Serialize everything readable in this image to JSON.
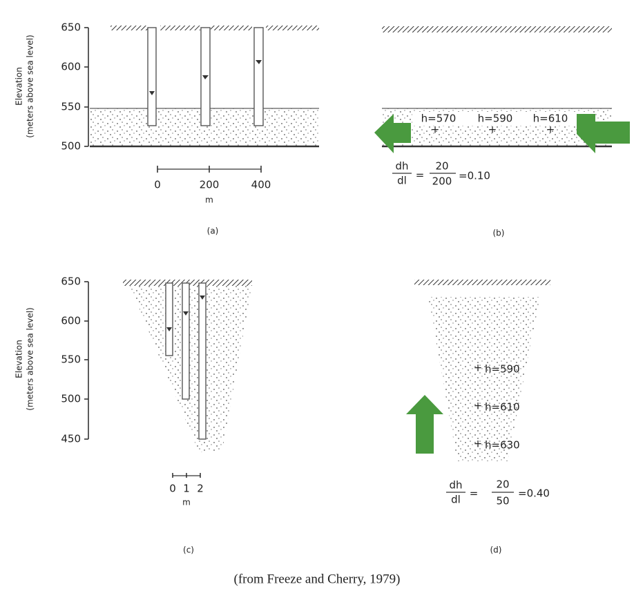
{
  "panels": [
    {
      "label": "(a)",
      "axis_title": [
        "Elevation",
        "(meters above sea level)"
      ],
      "ticks": [
        "650",
        "600",
        "550",
        "500"
      ],
      "scale": [
        "0",
        "200",
        "400"
      ],
      "scale_unit": "m"
    },
    {
      "label": "(b)",
      "heads": [
        "h=570",
        "h=590",
        "h=610"
      ],
      "gradient": {
        "lhs_num": "dh",
        "lhs_den": "dl",
        "equals": "=",
        "rhs_num": "20",
        "rhs_den": "200",
        "result": "=0.10"
      }
    },
    {
      "label": "(c)",
      "axis_title": [
        "Elevation",
        "(meters above sea level)"
      ],
      "ticks": [
        "650",
        "600",
        "550",
        "500",
        "450"
      ],
      "scale": [
        "0",
        "1",
        "2"
      ],
      "scale_unit": "m"
    },
    {
      "label": "(d)",
      "heads": [
        "h=590",
        "h=610",
        "h=630"
      ],
      "gradient": {
        "lhs_num": "dh",
        "lhs_den": "dl",
        "equals": "=",
        "rhs_num": "20",
        "rhs_den": "50",
        "result": "=0.40"
      }
    }
  ],
  "source": "(from Freeze and Cherry, 1979)"
}
